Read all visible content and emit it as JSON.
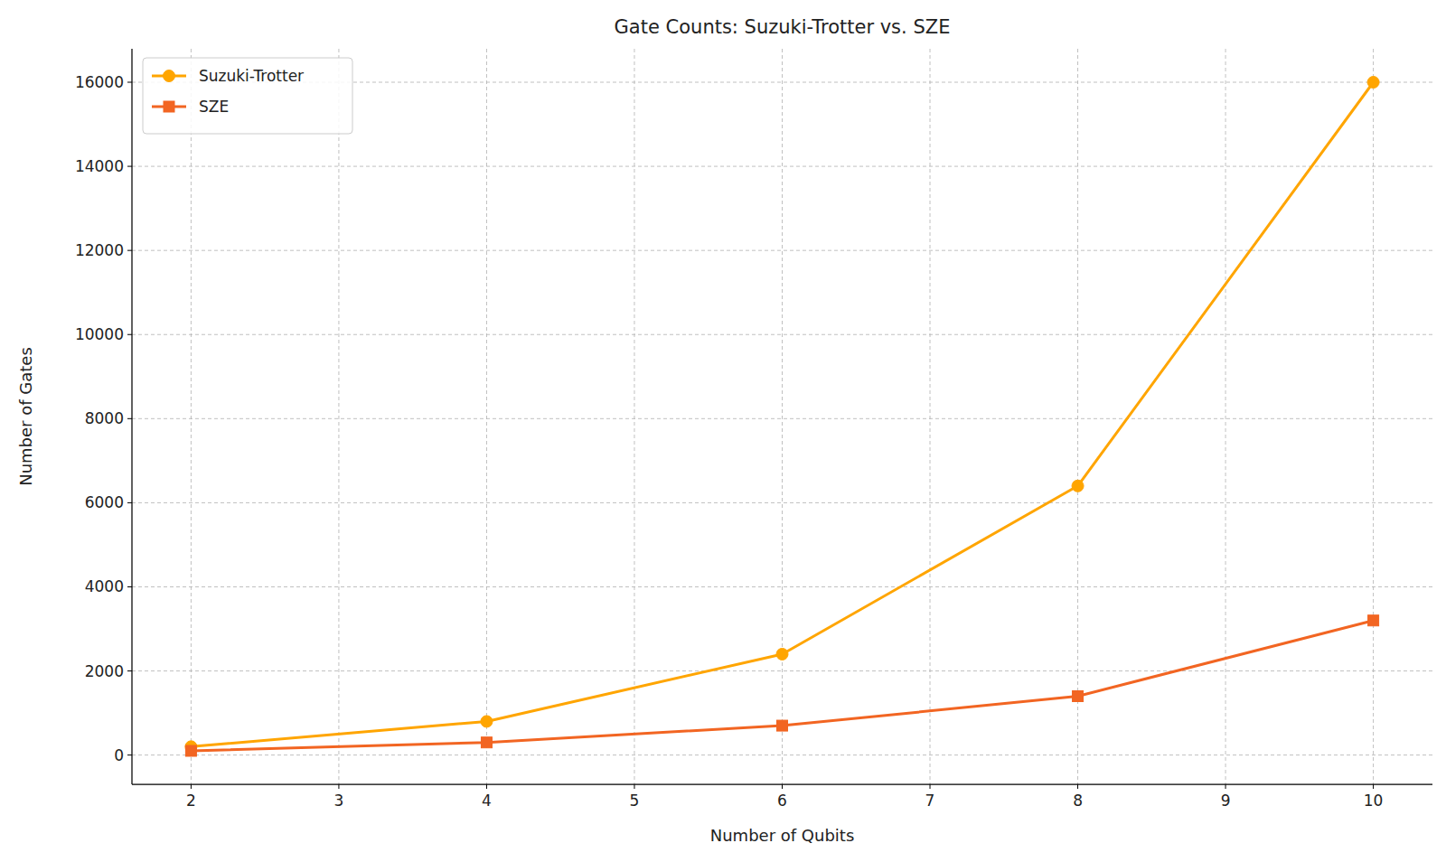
{
  "chart_data": {
    "type": "line",
    "title": "Gate Counts: Suzuki-Trotter vs. SZE",
    "x_label": "Number of Qubits",
    "y_label": "Number of Gates",
    "x": [
      2,
      4,
      6,
      8,
      10
    ],
    "series": [
      {
        "name": "Suzuki-Trotter",
        "color": "#ffa500",
        "marker": "circle",
        "values": [
          200,
          800,
          2400,
          6400,
          16000
        ]
      },
      {
        "name": "SZE",
        "color": "#f26522",
        "marker": "square",
        "values": [
          100,
          300,
          700,
          1400,
          3200
        ]
      }
    ],
    "xlim": [
      1.6,
      10.4
    ],
    "ylim": [
      -695,
      16795
    ],
    "xticks": [
      2,
      3,
      4,
      5,
      6,
      7,
      8,
      9,
      10
    ],
    "yticks": [
      0,
      2000,
      4000,
      6000,
      8000,
      10000,
      12000,
      14000,
      16000
    ],
    "grid": true,
    "legend": "upper left"
  }
}
